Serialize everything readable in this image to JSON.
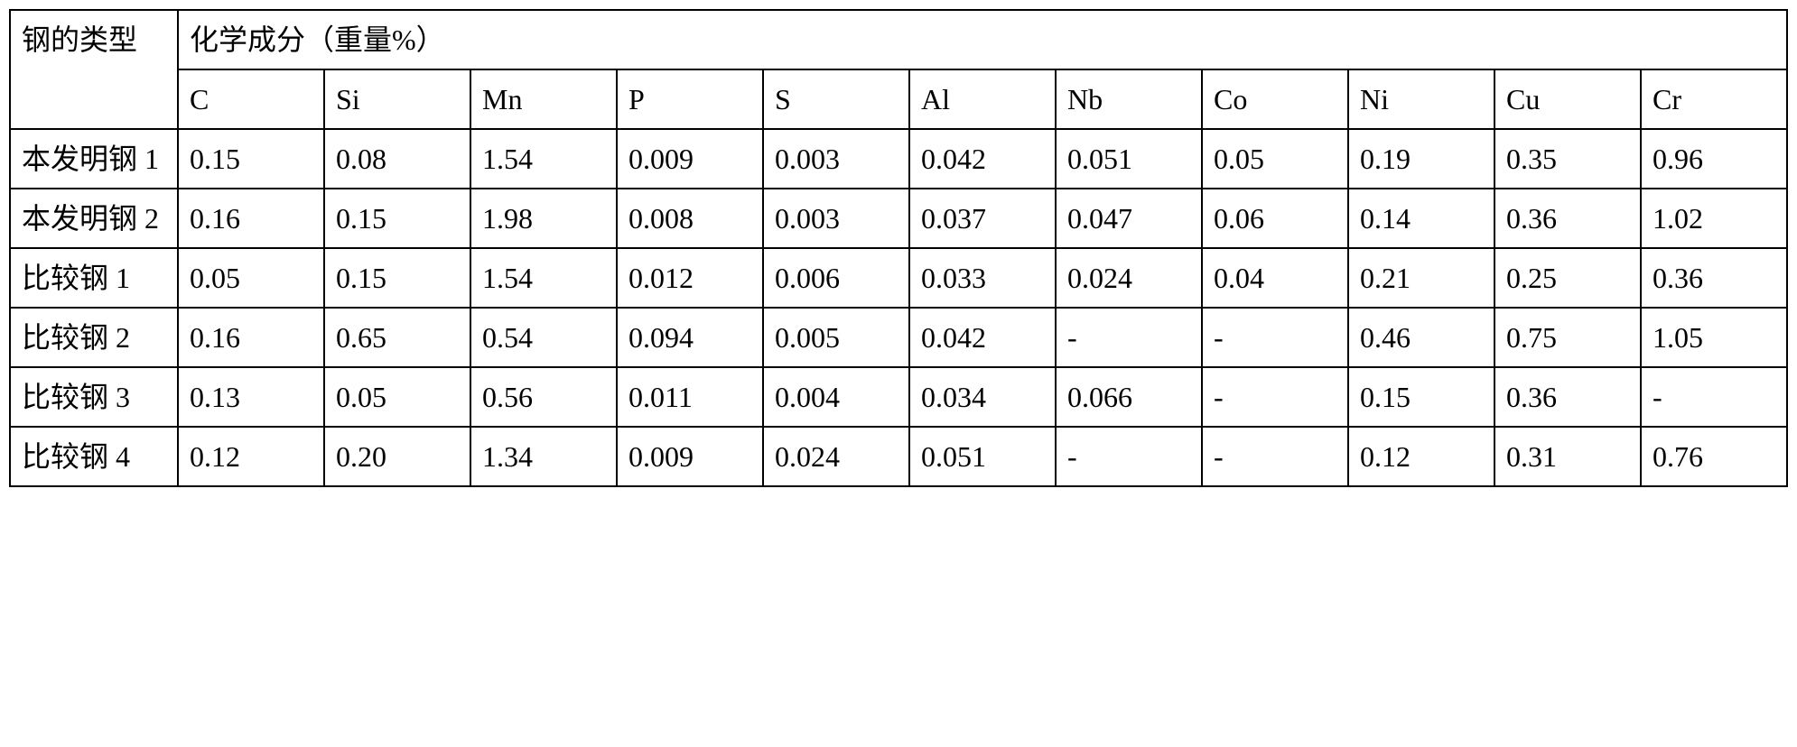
{
  "table": {
    "type": "table",
    "background_color": "#ffffff",
    "border_color": "#000000",
    "border_width": 2,
    "font_family": "SimSun",
    "font_size": 32,
    "cell_padding": "8px 12px",
    "text_align": "left",
    "header": {
      "row_label_header": "钢的类型",
      "main_header": "化学成分（重量%）",
      "columns": [
        "C",
        "Si",
        "Mn",
        "P",
        "S",
        "Al",
        "Nb",
        "Co",
        "Ni",
        "Cu",
        "Cr"
      ]
    },
    "rows": [
      {
        "label": "本发明钢 1",
        "values": [
          "0.15",
          "0.08",
          "1.54",
          "0.009",
          "0.003",
          "0.042",
          "0.051",
          "0.05",
          "0.19",
          "0.35",
          "0.96"
        ]
      },
      {
        "label": "本发明钢 2",
        "values": [
          "0.16",
          "0.15",
          "1.98",
          "0.008",
          "0.003",
          "0.037",
          "0.047",
          "0.06",
          "0.14",
          "0.36",
          "1.02"
        ]
      },
      {
        "label": "比较钢 1",
        "values": [
          "0.05",
          "0.15",
          "1.54",
          "0.012",
          "0.006",
          "0.033",
          "0.024",
          "0.04",
          "0.21",
          "0.25",
          "0.36"
        ]
      },
      {
        "label": "比较钢 2",
        "values": [
          "0.16",
          "0.65",
          "0.54",
          "0.094",
          "0.005",
          "0.042",
          "-",
          "-",
          "0.46",
          "0.75",
          "1.05"
        ]
      },
      {
        "label": "比较钢 3",
        "values": [
          "0.13",
          "0.05",
          "0.56",
          "0.011",
          "0.004",
          "0.034",
          "0.066",
          "-",
          "0.15",
          "0.36",
          "-"
        ]
      },
      {
        "label": "比较钢 4",
        "values": [
          "0.12",
          "0.20",
          "1.34",
          "0.009",
          "0.024",
          "0.051",
          "-",
          "-",
          "0.12",
          "0.31",
          "0.76"
        ]
      }
    ],
    "column_widths": {
      "type_col": 186,
      "data_col": 162
    }
  }
}
